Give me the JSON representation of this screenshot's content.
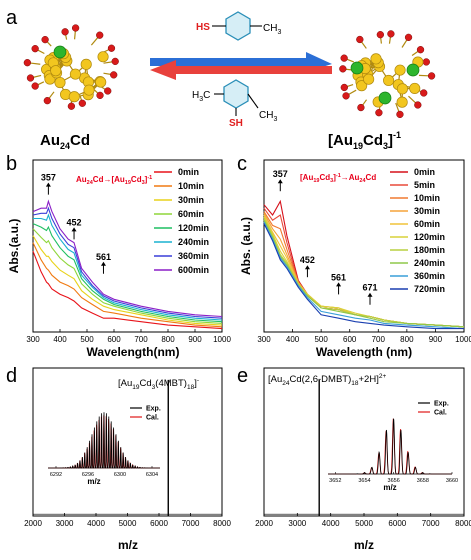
{
  "figure": {
    "colors": {
      "gold": "#f2c61f",
      "gold_dark": "#b08a10",
      "green": "#2db52d",
      "red": "#d81a1a",
      "arrow_blue": "#2b6fd6",
      "arrow_red": "#e8413c",
      "ring": "#d6eef6",
      "ring_stroke": "#2a8fb8",
      "sh_red": "#e02020"
    },
    "scheme": {
      "panel_label": "a",
      "left_name": "Au",
      "left_sub": "24",
      "left_tail": "Cd",
      "right_open": "[Au",
      "right_sub1": "19",
      "right_mid": "Cd",
      "right_sub2": "3",
      "right_close": "]",
      "right_sup": "-1",
      "top_ligand": {
        "sh": "HS",
        "me": "CH",
        "me_sub": "3"
      },
      "bottom_ligand": {
        "sh": "SH",
        "me_left": "H",
        "me_left_sub": "3",
        "me_left_c": "C",
        "me_right": "CH",
        "me_right_sub": "3"
      }
    },
    "panels": {
      "b": {
        "label": "b",
        "title_a": "Au",
        "title_sub1": "24",
        "title_b": "Cd→[Au",
        "title_sub2": "19",
        "title_c": "Cd",
        "title_sub3": "3",
        "title_d": "]",
        "title_sup": "-1",
        "title_color": "#e8001c"
      },
      "c": {
        "label": "c",
        "title_a": "[Au",
        "title_sub1": "19",
        "title_b": "Cd",
        "title_sub2": "3",
        "title_c": "]",
        "title_sup": "-1",
        "title_d": "→Au",
        "title_sub3": "24",
        "title_e": "Cd",
        "title_color": "#e8001c"
      },
      "d": {
        "label": "d",
        "assign_a": "[Au",
        "assign_sub1": "19",
        "assign_b": "Cd",
        "assign_sub2": "3",
        "assign_c": "(4MBT)",
        "assign_sub3": "18",
        "assign_d": "]",
        "assign_sup": "-",
        "inset_xlabel": "m/z"
      },
      "e": {
        "label": "e",
        "assign_a": "[Au",
        "assign_sub1": "24",
        "assign_b": "Cd(2,6-DMBT)",
        "assign_sub2": "18",
        "assign_c": "+2H]",
        "assign_sup": "2+",
        "inset_xlabel": "m/z"
      }
    },
    "legend_exp_cal": {
      "exp": "Exp.",
      "cal": "Cal."
    }
  },
  "chart_data": [
    {
      "id": "b",
      "type": "line",
      "xlabel": "Wavelength(nm)",
      "ylabel": "Abs.(a.u.)",
      "xlim": [
        300,
        1000
      ],
      "ylim": [
        0,
        1
      ],
      "xticks": [
        300,
        400,
        500,
        600,
        700,
        800,
        900,
        1000
      ],
      "x": [
        300,
        330,
        350,
        357,
        370,
        400,
        430,
        452,
        480,
        520,
        561,
        600,
        700,
        800,
        900,
        1000
      ],
      "series": [
        {
          "name": "0min",
          "color": "#e8131a",
          "values": [
            0.47,
            0.35,
            0.29,
            0.28,
            0.25,
            0.22,
            0.2,
            0.18,
            0.14,
            0.11,
            0.08,
            0.08,
            0.06,
            0.04,
            0.03,
            0.02
          ]
        },
        {
          "name": "10min",
          "color": "#f07a12",
          "values": [
            0.52,
            0.42,
            0.37,
            0.36,
            0.33,
            0.29,
            0.27,
            0.25,
            0.2,
            0.16,
            0.12,
            0.11,
            0.08,
            0.06,
            0.04,
            0.03
          ]
        },
        {
          "name": "30min",
          "color": "#e8d21a",
          "values": [
            0.56,
            0.48,
            0.44,
            0.44,
            0.41,
            0.36,
            0.33,
            0.31,
            0.24,
            0.19,
            0.15,
            0.13,
            0.1,
            0.07,
            0.05,
            0.04
          ]
        },
        {
          "name": "60min",
          "color": "#8fd63a",
          "values": [
            0.6,
            0.55,
            0.52,
            0.53,
            0.49,
            0.43,
            0.39,
            0.37,
            0.28,
            0.22,
            0.17,
            0.15,
            0.11,
            0.08,
            0.06,
            0.05
          ]
        },
        {
          "name": "120min",
          "color": "#1fbf62",
          "values": [
            0.63,
            0.61,
            0.59,
            0.61,
            0.56,
            0.49,
            0.44,
            0.42,
            0.31,
            0.24,
            0.19,
            0.16,
            0.12,
            0.09,
            0.07,
            0.06
          ]
        },
        {
          "name": "240min",
          "color": "#1ab2d0",
          "values": [
            0.66,
            0.66,
            0.65,
            0.68,
            0.62,
            0.54,
            0.48,
            0.46,
            0.33,
            0.26,
            0.2,
            0.17,
            0.13,
            0.1,
            0.08,
            0.07
          ]
        },
        {
          "name": "360min",
          "color": "#3a3fd8",
          "values": [
            0.68,
            0.69,
            0.69,
            0.72,
            0.66,
            0.57,
            0.51,
            0.49,
            0.35,
            0.27,
            0.21,
            0.18,
            0.14,
            0.11,
            0.09,
            0.08
          ]
        },
        {
          "name": "600min",
          "color": "#8b1fc7",
          "values": [
            0.7,
            0.72,
            0.72,
            0.76,
            0.7,
            0.6,
            0.54,
            0.52,
            0.37,
            0.29,
            0.22,
            0.19,
            0.15,
            0.12,
            0.1,
            0.09
          ]
        }
      ],
      "annotations": [
        {
          "text": "357",
          "x": 357,
          "y": 0.88
        },
        {
          "text": "452",
          "x": 452,
          "y": 0.62
        },
        {
          "text": "561",
          "x": 561,
          "y": 0.42
        }
      ]
    },
    {
      "id": "c",
      "type": "line",
      "xlabel": "Wavelength (nm)",
      "ylabel": "Abs. (a.u.)",
      "xlim": [
        300,
        1000
      ],
      "ylim": [
        0,
        1
      ],
      "xticks": [
        300,
        400,
        500,
        600,
        700,
        800,
        900,
        1000
      ],
      "x": [
        300,
        330,
        357,
        380,
        420,
        452,
        500,
        561,
        620,
        671,
        720,
        800,
        900,
        1000
      ],
      "series": [
        {
          "name": "0min",
          "color": "#d6101a",
          "values": [
            0.74,
            0.68,
            0.76,
            0.56,
            0.3,
            0.22,
            0.14,
            0.13,
            0.1,
            0.09,
            0.07,
            0.05,
            0.04,
            0.03
          ]
        },
        {
          "name": "5min",
          "color": "#e84a3a",
          "values": [
            0.72,
            0.65,
            0.68,
            0.52,
            0.29,
            0.22,
            0.14,
            0.13,
            0.1,
            0.09,
            0.07,
            0.05,
            0.04,
            0.03
          ]
        },
        {
          "name": "10min",
          "color": "#f07a30",
          "values": [
            0.7,
            0.62,
            0.6,
            0.48,
            0.29,
            0.22,
            0.14,
            0.13,
            0.1,
            0.09,
            0.07,
            0.05,
            0.04,
            0.03
          ]
        },
        {
          "name": "30min",
          "color": "#f5a33a",
          "values": [
            0.69,
            0.6,
            0.54,
            0.45,
            0.29,
            0.22,
            0.15,
            0.14,
            0.1,
            0.09,
            0.07,
            0.05,
            0.04,
            0.03
          ]
        },
        {
          "name": "60min",
          "color": "#f0c43a",
          "values": [
            0.68,
            0.58,
            0.5,
            0.43,
            0.28,
            0.22,
            0.15,
            0.14,
            0.1,
            0.09,
            0.07,
            0.05,
            0.04,
            0.03
          ]
        },
        {
          "name": "120min",
          "color": "#d8d23a",
          "values": [
            0.67,
            0.57,
            0.47,
            0.41,
            0.28,
            0.22,
            0.15,
            0.14,
            0.11,
            0.09,
            0.07,
            0.05,
            0.04,
            0.03
          ]
        },
        {
          "name": "180min",
          "color": "#b8d040",
          "values": [
            0.66,
            0.56,
            0.45,
            0.4,
            0.28,
            0.21,
            0.14,
            0.13,
            0.1,
            0.09,
            0.07,
            0.05,
            0.04,
            0.03
          ]
        },
        {
          "name": "240min",
          "color": "#8fc84a",
          "values": [
            0.65,
            0.55,
            0.44,
            0.39,
            0.27,
            0.21,
            0.14,
            0.12,
            0.1,
            0.08,
            0.06,
            0.05,
            0.04,
            0.03
          ]
        },
        {
          "name": "360min",
          "color": "#3a9fd8",
          "values": [
            0.64,
            0.54,
            0.43,
            0.38,
            0.27,
            0.2,
            0.12,
            0.1,
            0.08,
            0.07,
            0.05,
            0.04,
            0.03,
            0.02
          ]
        },
        {
          "name": "720min",
          "color": "#1a3fb0",
          "values": [
            0.63,
            0.53,
            0.42,
            0.37,
            0.26,
            0.19,
            0.1,
            0.08,
            0.06,
            0.05,
            0.04,
            0.03,
            0.02,
            0.02
          ]
        }
      ],
      "annotations": [
        {
          "text": "357",
          "x": 357,
          "y": 0.9
        },
        {
          "text": "452",
          "x": 452,
          "y": 0.4
        },
        {
          "text": "561",
          "x": 561,
          "y": 0.3
        },
        {
          "text": "671",
          "x": 671,
          "y": 0.24
        }
      ]
    },
    {
      "id": "d",
      "type": "line",
      "xlabel": "m/z",
      "ylabel": "",
      "xlim": [
        2000,
        8000
      ],
      "ylim": [
        0,
        1
      ],
      "xticks": [
        2000,
        3000,
        4000,
        5000,
        6000,
        7000,
        8000
      ],
      "peaks": [
        {
          "mz": 6294,
          "intensity": 0.92
        }
      ],
      "inset": {
        "xlim": [
          6291,
          6305
        ],
        "xticks": [
          6292,
          6296,
          6300,
          6304
        ],
        "envelope_center": 6298.0,
        "peak_spacing": 0.3,
        "envelope_width": 3.3,
        "legend": [
          "Exp.",
          "Cal."
        ],
        "colors": {
          "exp": "#000000",
          "cal": "#e01818"
        }
      }
    },
    {
      "id": "e",
      "type": "line",
      "xlabel": "m/z",
      "ylabel": "",
      "xlim": [
        2000,
        8000
      ],
      "ylim": [
        0,
        1
      ],
      "xticks": [
        2000,
        3000,
        4000,
        5000,
        6000,
        7000,
        8000
      ],
      "peaks": [
        {
          "mz": 3656,
          "intensity": 0.92
        }
      ],
      "inset": {
        "xlim": [
          3651.5,
          3660
        ],
        "xticks": [
          3652,
          3654,
          3656,
          3658,
          3660
        ],
        "envelope_center": 3656.0,
        "peak_spacing": 0.5,
        "envelope_width": 1.6,
        "legend": [
          "Exp.",
          "Cal."
        ],
        "colors": {
          "exp": "#000000",
          "cal": "#e01818"
        }
      }
    }
  ]
}
